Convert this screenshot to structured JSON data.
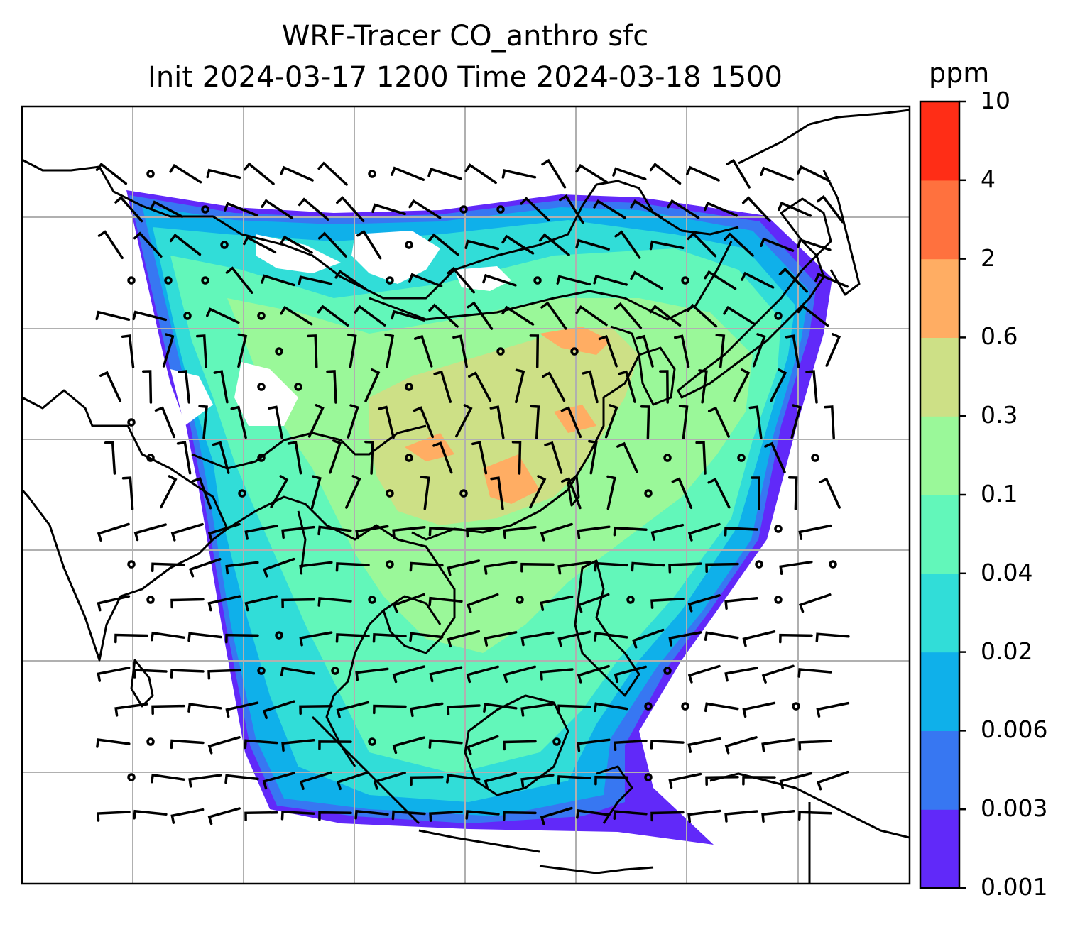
{
  "figure": {
    "title_line1": "WRF-Tracer CO_anthro sfc",
    "title_line2": "Init 2024-03-17 1200 Time 2024-03-18 1500"
  },
  "colorbar": {
    "unit": "ppm",
    "ticks": [
      "0.001",
      "0.003",
      "0.006",
      "0.02",
      "0.04",
      "0.1",
      "0.3",
      "0.6",
      "2",
      "4",
      "10"
    ],
    "colors": [
      "#6129f9",
      "#3777f2",
      "#0fb0ea",
      "#31ddd8",
      "#62f7ba",
      "#9af899",
      "#cde086",
      "#ffad63",
      "#ff713e",
      "#ff2d16"
    ]
  },
  "map": {
    "field": "CO_anthro surface concentration",
    "overlay": "wind barbs",
    "land_outline_color": "#000000",
    "grid_color": "#b0b0b0",
    "no_data_color": "#ffffff"
  }
}
